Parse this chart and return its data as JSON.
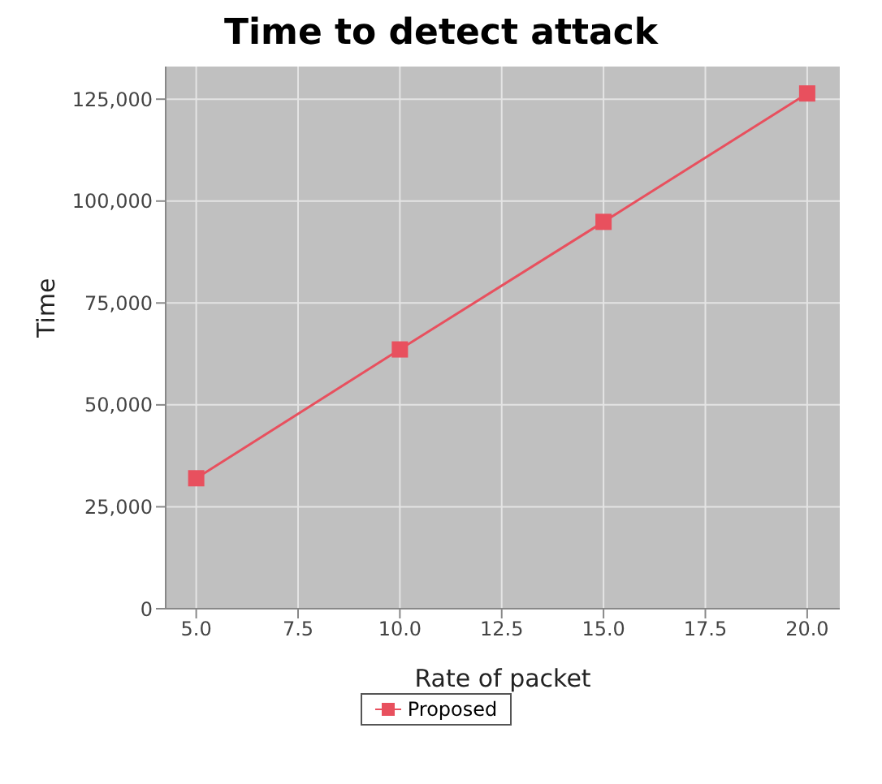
{
  "chart_data": {
    "type": "line",
    "title": "Time to detect attack",
    "xlabel": "Rate of packet",
    "ylabel": "Time",
    "x": [
      5,
      10,
      15,
      20
    ],
    "series": [
      {
        "name": "Proposed",
        "color": "#e8505e",
        "values": [
          32000,
          63600,
          94900,
          126400
        ]
      }
    ],
    "xlim": [
      4.25,
      20.8
    ],
    "xticks": [
      {
        "value": 5,
        "label": "5.0"
      },
      {
        "value": 7.5,
        "label": "7.5"
      },
      {
        "value": 10,
        "label": "10.0"
      },
      {
        "value": 12.5,
        "label": "12.5"
      },
      {
        "value": 15,
        "label": "15.0"
      },
      {
        "value": 17.5,
        "label": "17.5"
      },
      {
        "value": 20,
        "label": "20.0"
      }
    ],
    "ylim": [
      0,
      133000
    ],
    "yticks": [
      {
        "value": 0,
        "label": "0"
      },
      {
        "value": 25000,
        "label": "25,000"
      },
      {
        "value": 50000,
        "label": "50,000"
      },
      {
        "value": 75000,
        "label": "75,000"
      },
      {
        "value": 100000,
        "label": "100,000"
      },
      {
        "value": 125000,
        "label": "125,000"
      }
    ],
    "grid": true,
    "legend": "bottom",
    "marker": "square",
    "line_style": "solid"
  }
}
